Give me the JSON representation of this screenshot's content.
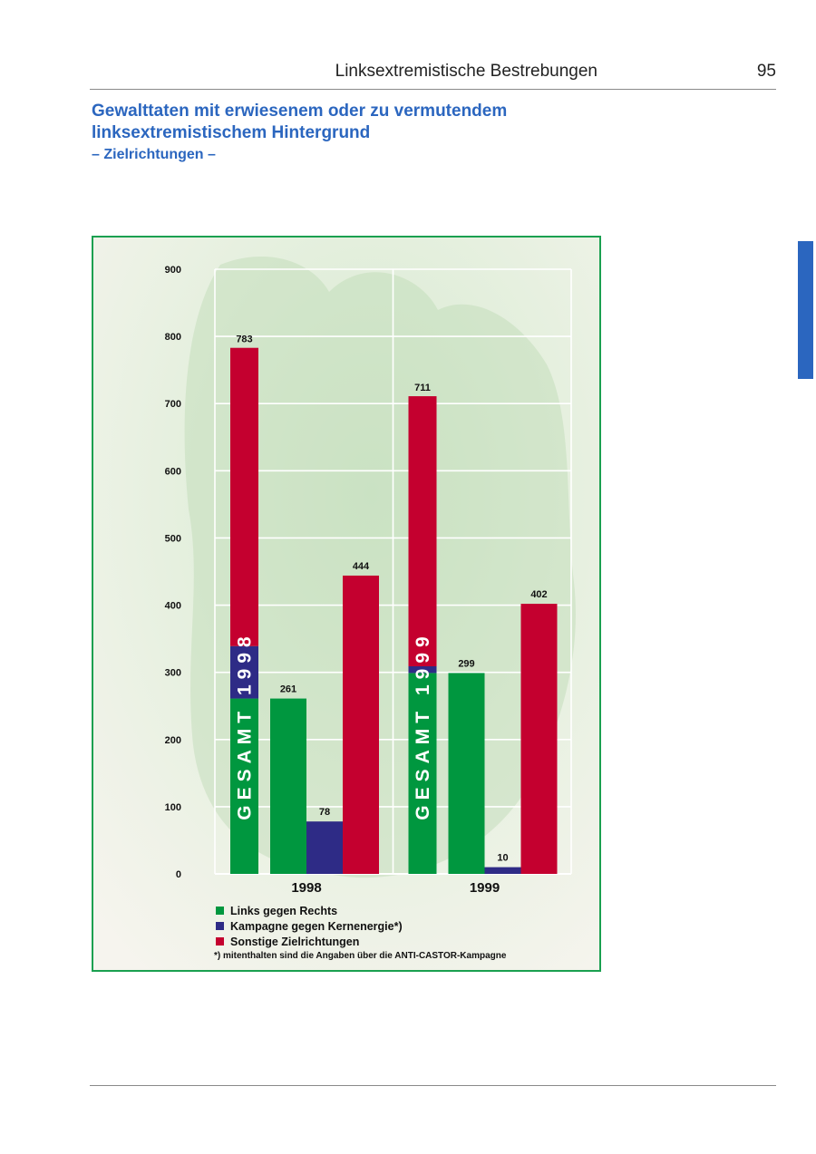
{
  "header": {
    "running_title": "Linksextremistische Bestrebungen",
    "page_number": "95"
  },
  "heading": {
    "title_line1": "Gewalttaten mit erwiesenem oder zu vermutendem",
    "title_line2": "linksextremistischem Hintergrund",
    "subtitle": "– Zielrichtungen –"
  },
  "colors": {
    "green": "#00973f",
    "blue": "#2e2b86",
    "red": "#c4002f",
    "accent_blue": "#2b66bf",
    "frame_green": "#1aa050"
  },
  "chart_data": {
    "type": "bar",
    "categories": [
      "1998",
      "1999"
    ],
    "ylim": [
      0,
      900
    ],
    "yticks": [
      0,
      100,
      200,
      300,
      400,
      500,
      600,
      700,
      800,
      900
    ],
    "grid": true,
    "legend_position": "bottom",
    "series": [
      {
        "name": "Links gegen Rechts",
        "color": "#00973f",
        "values": [
          261,
          299
        ]
      },
      {
        "name": "Kampagne gegen Kernenergie*)",
        "color": "#2e2b86",
        "values": [
          78,
          10
        ]
      },
      {
        "name": "Sonstige Zielrichtungen",
        "color": "#c4002f",
        "values": [
          444,
          402
        ]
      }
    ],
    "totals": [
      {
        "label": "GESAMT 1998",
        "value": 783
      },
      {
        "label": "GESAMT 1999",
        "value": 711
      }
    ],
    "footnote": "*) mitenthalten sind die Angaben über die ANTI-CASTOR-Kampagne"
  }
}
